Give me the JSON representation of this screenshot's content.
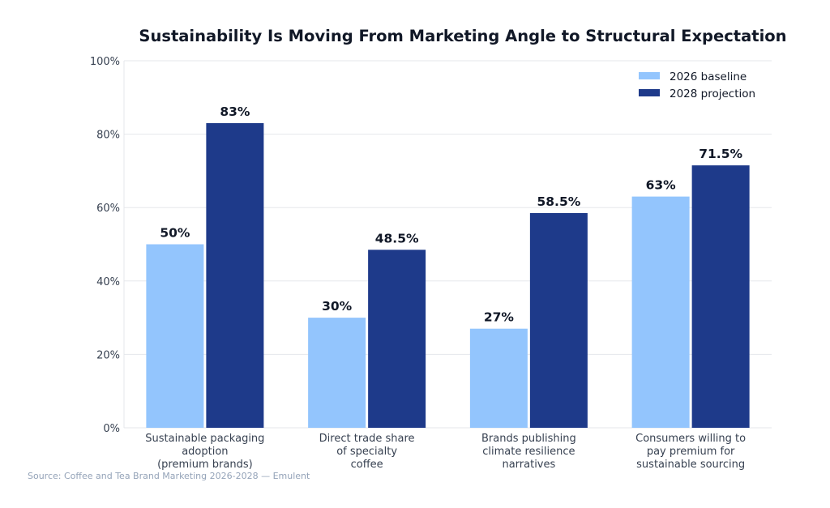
{
  "chart_data": {
    "type": "bar",
    "title": "Sustainability Is Moving From Marketing Angle to Structural Expectation",
    "categories": [
      [
        "Sustainable packaging",
        "adoption",
        "(premium brands)"
      ],
      [
        "Direct trade share",
        "of specialty",
        "coffee"
      ],
      [
        "Brands publishing",
        "climate resilience",
        "narratives"
      ],
      [
        "Consumers willing to",
        "pay premium for",
        "sustainable sourcing"
      ]
    ],
    "series": [
      {
        "name": "2026 baseline",
        "values": [
          50,
          30,
          27,
          63
        ],
        "labels": [
          "50%",
          "30%",
          "27%",
          "63%"
        ],
        "color": "#93c5fd"
      },
      {
        "name": "2028 projection",
        "values": [
          83,
          48.5,
          58.5,
          71.5
        ],
        "labels": [
          "83%",
          "48.5%",
          "58.5%",
          "71.5%"
        ],
        "color": "#1e3a8a"
      }
    ],
    "ylim": [
      0,
      100
    ],
    "yticks": [
      "0%",
      "20%",
      "40%",
      "60%",
      "80%",
      "100%"
    ],
    "xlabel": "",
    "ylabel": "",
    "grid": true,
    "legend": "top-right"
  },
  "source": "Source: Coffee and Tea Brand Marketing 2026-2028 — Emulent"
}
